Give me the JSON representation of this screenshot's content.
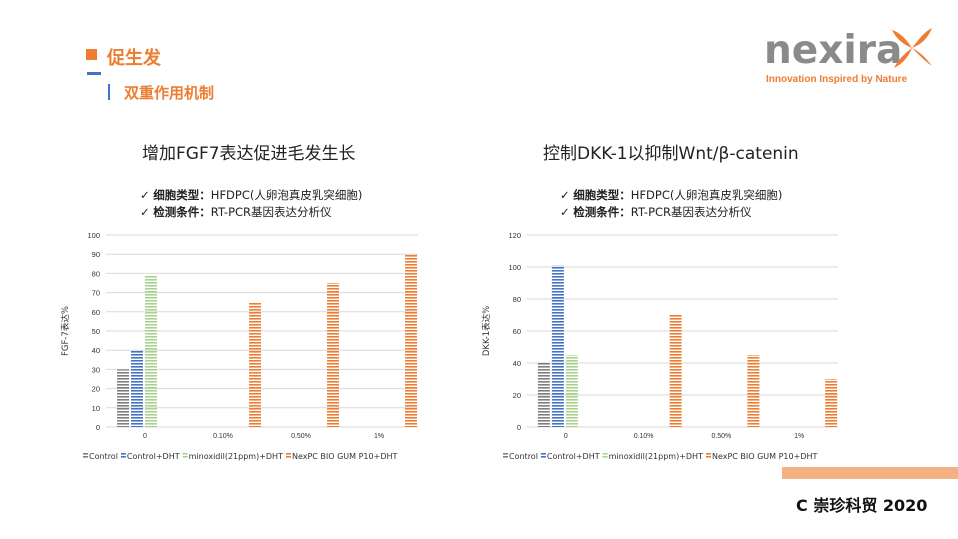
{
  "header": {
    "title": "促生发",
    "subtitle": "双重作用机制"
  },
  "logo": {
    "text": "nexira",
    "tagline": "Innovation Inspired by Nature"
  },
  "left": {
    "heading": "增加FGF7表达促进毛发生长",
    "notes": [
      {
        "label": "细胞类型：",
        "value": "HFDPC(人卵泡真皮乳突细胞)"
      },
      {
        "label": "检测条件：",
        "value": "RT-PCR基因表达分析仪"
      }
    ]
  },
  "right": {
    "heading": "控制DKK-1以抑制Wnt/β-catenin",
    "notes": [
      {
        "label": "细胞类型：",
        "value": "HFDPC(人卵泡真皮乳突细胞)"
      },
      {
        "label": "检测条件：",
        "value": "RT-PCR基因表达分析仪"
      }
    ]
  },
  "footer": {
    "text": "C 崇珍科贸 2020"
  },
  "colors": {
    "accent": "#ED7D31",
    "blue": "#4472C4",
    "footer_bar": "#F4B183"
  },
  "chart_data": [
    {
      "type": "bar",
      "categories": [
        "0",
        "0.10%",
        "0.50%",
        "1%"
      ],
      "ylabel": "FGF-7表达%",
      "ylim": [
        0,
        100
      ],
      "yticks": [
        0,
        10,
        20,
        30,
        40,
        50,
        60,
        70,
        80,
        90,
        100
      ],
      "legend_position": "bottom",
      "series": [
        {
          "name": "Control",
          "color": "#7F7F7F",
          "values": [
            30,
            null,
            null,
            null
          ]
        },
        {
          "name": "Control+DHT",
          "color": "#4472C4",
          "values": [
            40,
            null,
            null,
            null
          ]
        },
        {
          "name": "minoxidil(21ppm)+DHT",
          "color": "#A9D18E",
          "values": [
            79,
            null,
            null,
            null
          ]
        },
        {
          "name": "NexPC BIO GUM P10+DHT",
          "color": "#ED7D31",
          "values": [
            null,
            65,
            75,
            90
          ]
        }
      ]
    },
    {
      "type": "bar",
      "categories": [
        "0",
        "0.10%",
        "0.50%",
        "1%"
      ],
      "ylabel": "DKK-1表达%",
      "ylim": [
        0,
        120
      ],
      "yticks": [
        0,
        20,
        40,
        60,
        80,
        100,
        120
      ],
      "legend_position": "bottom",
      "series": [
        {
          "name": "Control",
          "color": "#7F7F7F",
          "values": [
            40,
            null,
            null,
            null
          ]
        },
        {
          "name": "Control+DHT",
          "color": "#4472C4",
          "values": [
            101,
            null,
            null,
            null
          ]
        },
        {
          "name": "minoxidil(21ppm)+DHT",
          "color": "#A9D18E",
          "values": [
            45,
            null,
            null,
            null
          ]
        },
        {
          "name": "NexPC BIO GUM P10+DHT",
          "color": "#ED7D31",
          "values": [
            null,
            70,
            45,
            30
          ]
        }
      ]
    }
  ]
}
